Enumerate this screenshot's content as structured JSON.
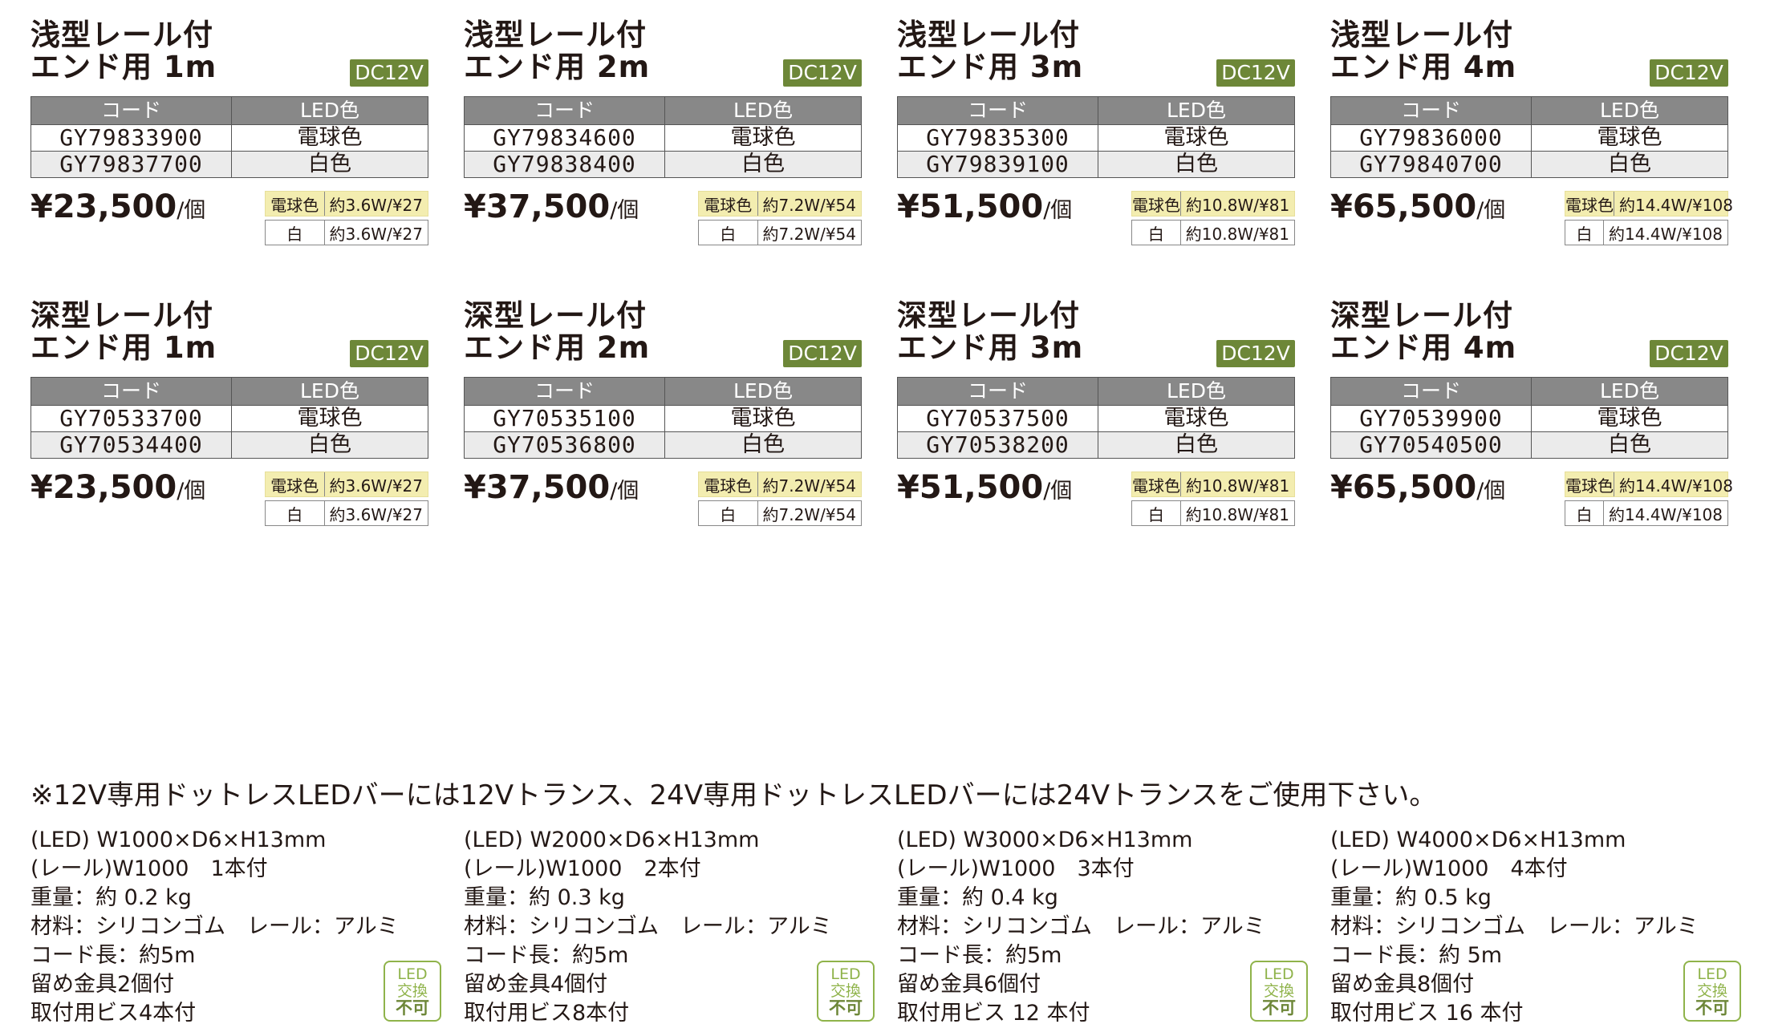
{
  "labels": {
    "code_header": "コード",
    "color_header": "LED色",
    "dc_badge": "DC12V",
    "price_unit": "/個",
    "warm_kind": "電球色",
    "white_kind": "白",
    "swap_line1": "LED",
    "swap_line2": "交換",
    "swap_line3": "不可"
  },
  "colors": {
    "badge_green": "#6d8738",
    "header_gray": "#888888",
    "warm_highlight": "#f3edb0",
    "swap_green": "#8fb34a"
  },
  "products": [
    {
      "title1": "浅型レール付",
      "title2": "エンド用 1m",
      "rows": [
        {
          "code": "GY79833900",
          "color": "電球色"
        },
        {
          "code": "GY79837700",
          "color": "白色"
        }
      ],
      "price": "¥23,500",
      "warm_watt": "約3.6W/¥27",
      "white_watt": "約3.6W/¥27"
    },
    {
      "title1": "浅型レール付",
      "title2": "エンド用 2m",
      "rows": [
        {
          "code": "GY79834600",
          "color": "電球色"
        },
        {
          "code": "GY79838400",
          "color": "白色"
        }
      ],
      "price": "¥37,500",
      "warm_watt": "約7.2W/¥54",
      "white_watt": "約7.2W/¥54"
    },
    {
      "title1": "浅型レール付",
      "title2": "エンド用 3m",
      "rows": [
        {
          "code": "GY79835300",
          "color": "電球色"
        },
        {
          "code": "GY79839100",
          "color": "白色"
        }
      ],
      "price": "¥51,500",
      "warm_watt": "約10.8W/¥81",
      "white_watt": "約10.8W/¥81"
    },
    {
      "title1": "浅型レール付",
      "title2": "エンド用 4m",
      "rows": [
        {
          "code": "GY79836000",
          "color": "電球色"
        },
        {
          "code": "GY79840700",
          "color": "白色"
        }
      ],
      "price": "¥65,500",
      "warm_watt": "約14.4W/¥108",
      "white_watt": "約14.4W/¥108"
    },
    {
      "title1": "深型レール付",
      "title2": "エンド用 1m",
      "rows": [
        {
          "code": "GY70533700",
          "color": "電球色"
        },
        {
          "code": "GY70534400",
          "color": "白色"
        }
      ],
      "price": "¥23,500",
      "warm_watt": "約3.6W/¥27",
      "white_watt": "約3.6W/¥27",
      "specs": [
        "(LED) W1000×D6×H13mm",
        "(レール)W1000　1本付",
        "重量：約 0.2 kg",
        "材料：シリコンゴム　レール：アルミ",
        "コード長：約5m",
        "留め金具2個付",
        "取付用ビス4本付"
      ]
    },
    {
      "title1": "深型レール付",
      "title2": "エンド用 2m",
      "rows": [
        {
          "code": "GY70535100",
          "color": "電球色"
        },
        {
          "code": "GY70536800",
          "color": "白色"
        }
      ],
      "price": "¥37,500",
      "warm_watt": "約7.2W/¥54",
      "white_watt": "約7.2W/¥54",
      "specs": [
        "(LED) W2000×D6×H13mm",
        "(レール)W1000　2本付",
        "重量：約 0.3 kg",
        "材料：シリコンゴム　レール：アルミ",
        "コード長：約5m",
        "留め金具4個付",
        "取付用ビス8本付"
      ]
    },
    {
      "title1": "深型レール付",
      "title2": "エンド用 3m",
      "rows": [
        {
          "code": "GY70537500",
          "color": "電球色"
        },
        {
          "code": "GY70538200",
          "color": "白色"
        }
      ],
      "price": "¥51,500",
      "warm_watt": "約10.8W/¥81",
      "white_watt": "約10.8W/¥81",
      "specs": [
        "(LED) W3000×D6×H13mm",
        "(レール)W1000　3本付",
        "重量：約 0.4 kg",
        "材料：シリコンゴム　レール：アルミ",
        "コード長：約5m",
        "留め金具6個付",
        "取付用ビス 12 本付"
      ]
    },
    {
      "title1": "深型レール付",
      "title2": "エンド用 4m",
      "rows": [
        {
          "code": "GY70539900",
          "color": "電球色"
        },
        {
          "code": "GY70540500",
          "color": "白色"
        }
      ],
      "price": "¥65,500",
      "warm_watt": "約14.4W/¥108",
      "white_watt": "約14.4W/¥108",
      "specs": [
        "(LED) W4000×D6×H13mm",
        "(レール)W1000　4本付",
        "重量：約 0.5 kg",
        "材料：シリコンゴム　レール：アルミ",
        "コード長：約 5m",
        "留め金具8個付",
        "取付用ビス 16 本付"
      ]
    }
  ],
  "footnote": "※12V専用ドットレスLEDバーには12Vトランス、24V専用ドットレスLEDバーには24Vトランスをご使用下さい。"
}
